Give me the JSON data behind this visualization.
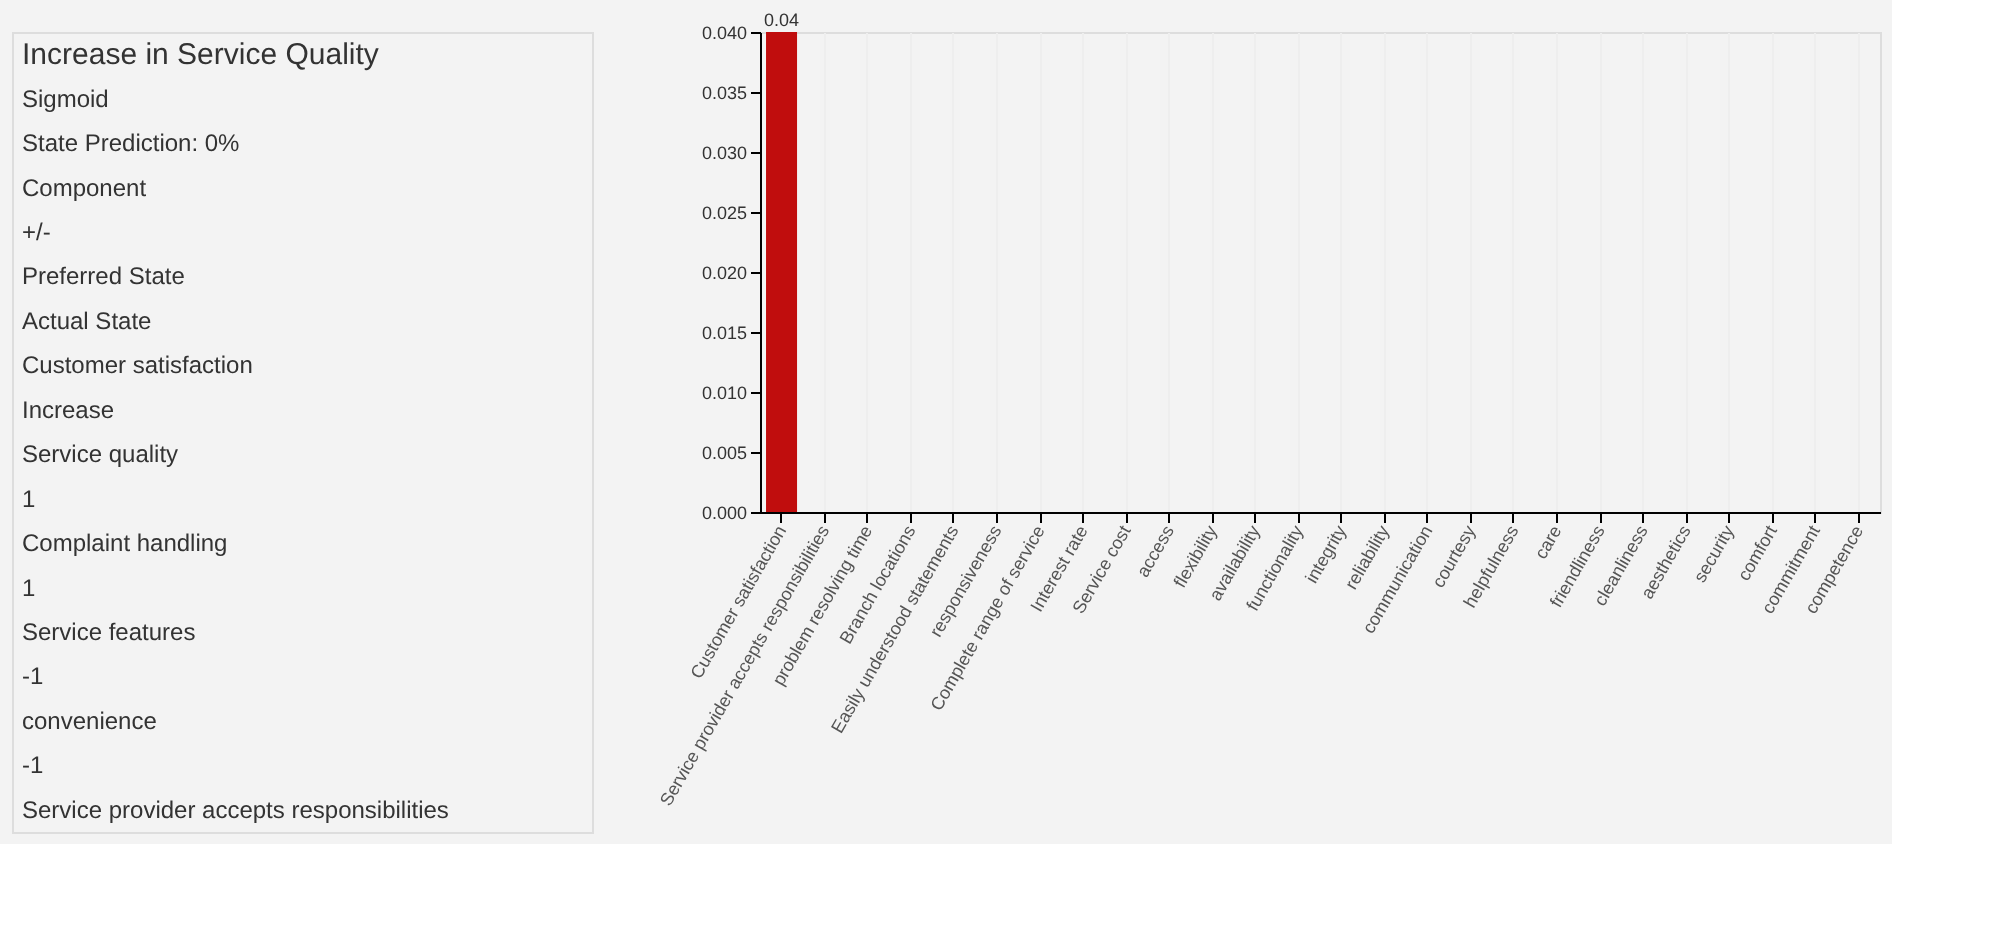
{
  "chart_data": {
    "type": "bar",
    "title": "Increase in Service Quality",
    "annotations": [
      "Sigmoid",
      "State Prediction: 0%",
      "Component",
      "+/-",
      "Preferred State",
      "Actual State",
      "Customer satisfaction",
      "Increase",
      "Service quality",
      "1",
      "Complaint handling",
      "1",
      "Service features",
      "-1",
      "convenience",
      "-1",
      "Service provider accepts responsibilities"
    ],
    "categories": [
      "Customer satisfaction",
      "Service provider accepts responsibilities",
      "problem resolving time",
      "Branch locations",
      "Easily understood statements",
      "responsiveness",
      "Complete range of service",
      "Interest rate",
      "Service cost",
      "access",
      "flexibility",
      "availability",
      "functionality",
      "integrity",
      "reliability",
      "communication",
      "courtesy",
      "helpfulness",
      "care",
      "friendliness",
      "cleanliness",
      "aesthetics",
      "security",
      "comfort",
      "commitment",
      "competence"
    ],
    "values": [
      0.04,
      0,
      0,
      0,
      0,
      0,
      0,
      0,
      0,
      0,
      0,
      0,
      0,
      0,
      0,
      0,
      0,
      0,
      0,
      0,
      0,
      0,
      0,
      0,
      0,
      0
    ],
    "value_labels": [
      "0.04",
      null,
      null,
      null,
      null,
      null,
      null,
      null,
      null,
      null,
      null,
      null,
      null,
      null,
      null,
      null,
      null,
      null,
      null,
      null,
      null,
      null,
      null,
      null,
      null,
      null
    ],
    "color": "#c00d0d",
    "ylim": [
      0,
      0.04
    ],
    "yticks": [
      {
        "value": 0,
        "label": "0.000"
      },
      {
        "value": 0.005,
        "label": "0.005"
      },
      {
        "value": 0.01,
        "label": "0.010"
      },
      {
        "value": 0.015,
        "label": "0.015"
      },
      {
        "value": 0.02,
        "label": "0.020"
      },
      {
        "value": 0.025,
        "label": "0.025"
      },
      {
        "value": 0.03,
        "label": "0.030"
      },
      {
        "value": 0.035,
        "label": "0.035"
      },
      {
        "value": 0.04,
        "label": "0.040"
      }
    ],
    "grid": "x"
  }
}
